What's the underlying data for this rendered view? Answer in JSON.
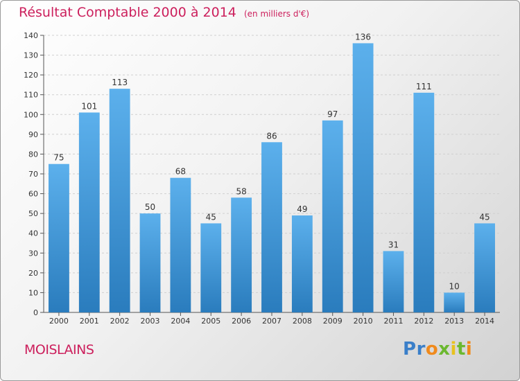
{
  "chart_data": {
    "type": "bar",
    "title": "Résultat Comptable 2000 à 2014",
    "subtitle": "(en milliers d'€)",
    "categories": [
      "2000",
      "2001",
      "2002",
      "2003",
      "2004",
      "2005",
      "2006",
      "2007",
      "2008",
      "2009",
      "2010",
      "2011",
      "2012",
      "2013",
      "2014"
    ],
    "values": [
      75,
      101,
      113,
      50,
      68,
      45,
      58,
      86,
      49,
      97,
      136,
      31,
      111,
      10,
      45
    ],
    "ylim": [
      0,
      140
    ],
    "yticks": [
      0,
      10,
      20,
      30,
      40,
      50,
      60,
      70,
      80,
      90,
      100,
      110,
      120,
      130,
      140
    ],
    "grid": true,
    "bar_color_top": "#5cb0ec",
    "bar_color_bottom": "#2a7cbd"
  },
  "footer": {
    "commune": "MOISLAINS",
    "logo": "Proxiti"
  },
  "colors": {
    "accent": "#cc1f5c"
  }
}
